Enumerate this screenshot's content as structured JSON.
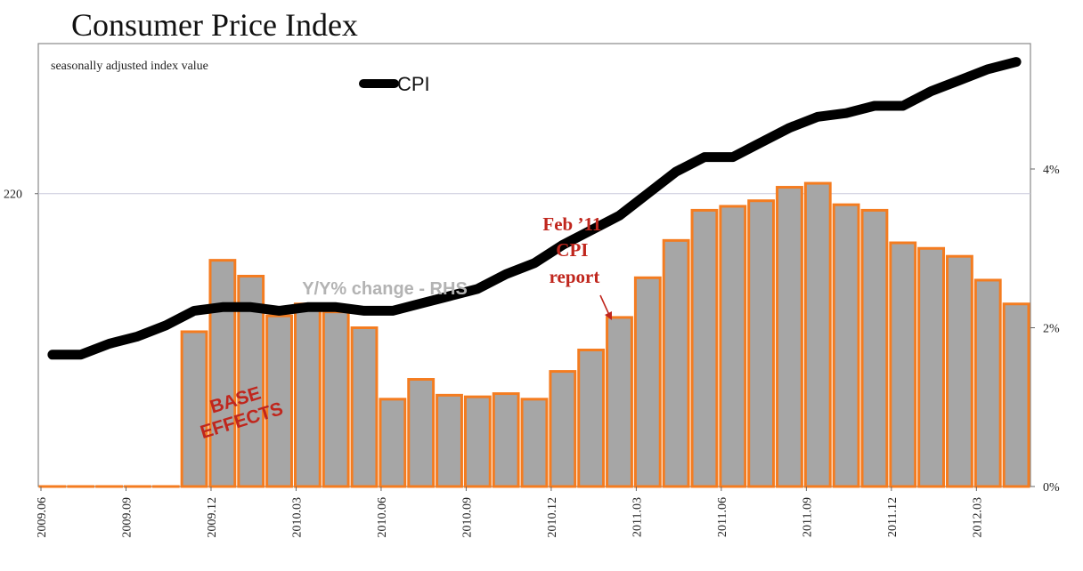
{
  "chart_data": {
    "type": "bar",
    "title": "Consumer Price Index",
    "subtitle": "seasonally adjusted index value",
    "categories": [
      "2009.06",
      "2009.07",
      "2009.08",
      "2009.09",
      "2009.10",
      "2009.11",
      "2009.12",
      "2010.01",
      "2010.02",
      "2010.03",
      "2010.04",
      "2010.05",
      "2010.06",
      "2010.07",
      "2010.08",
      "2010.09",
      "2010.10",
      "2010.11",
      "2010.12",
      "2011.01",
      "2011.02",
      "2011.03",
      "2011.04",
      "2011.05",
      "2011.06",
      "2011.07",
      "2011.08",
      "2011.09",
      "2011.10",
      "2011.11",
      "2011.12",
      "2012.01",
      "2012.02",
      "2012.03",
      "2012.04"
    ],
    "x_tick_labels": [
      "2009.06",
      "2009.09",
      "2009.12",
      "2010.03",
      "2010.06",
      "2010.09",
      "2010.12",
      "2011.03",
      "2011.06",
      "2011.09",
      "2011.12",
      "2012.03"
    ],
    "series": [
      {
        "name": "CPI",
        "type": "line",
        "axis": "left",
        "color": "#000000",
        "values": [
          215.6,
          215.6,
          215.9,
          216.1,
          216.4,
          216.8,
          216.9,
          216.9,
          216.8,
          216.9,
          216.9,
          216.8,
          216.8,
          217.0,
          217.2,
          217.4,
          217.8,
          218.1,
          218.6,
          219.0,
          219.4,
          220.0,
          220.6,
          221.0,
          221.0,
          221.4,
          221.8,
          222.1,
          222.2,
          222.4,
          222.4,
          222.8,
          223.1,
          223.4,
          223.6
        ]
      },
      {
        "type": "bar",
        "axis": "right",
        "fill_color": "#a6a6a6",
        "edge_color": "#f47c20",
        "values": [
          0.0,
          0.0,
          0.0,
          0.0,
          0.0,
          1.95,
          2.85,
          2.65,
          2.15,
          2.3,
          2.2,
          2.0,
          1.1,
          1.35,
          1.15,
          1.13,
          1.17,
          1.1,
          1.45,
          1.72,
          2.13,
          2.63,
          3.1,
          3.48,
          3.53,
          3.6,
          3.77,
          3.82,
          3.55,
          3.48,
          3.07,
          3.0,
          2.9,
          2.6,
          2.3
        ]
      }
    ],
    "left_axis": {
      "ylim": [
        212.0,
        224.1
      ],
      "ticks": [
        {
          "value": 220,
          "label": "220"
        }
      ]
    },
    "right_axis": {
      "ylim": [
        0,
        5.58
      ],
      "ticks": [
        {
          "value": 0,
          "label": "0%"
        },
        {
          "value": 2,
          "label": "2%"
        },
        {
          "value": 4,
          "label": "4%"
        }
      ]
    },
    "grid": {
      "horizontal_at_left_value": 220,
      "color": "#c8c8dc"
    },
    "legend": {
      "placement": "top-center",
      "entries": [
        "CPI"
      ]
    },
    "annotations": {
      "yy_label": "Y/Y% change - RHS",
      "feb_report": [
        "Feb ’11",
        "CPI",
        "report"
      ],
      "feb_report_target": "2011.02",
      "base_effects": [
        "BASE",
        "EFFECTS"
      ]
    }
  }
}
